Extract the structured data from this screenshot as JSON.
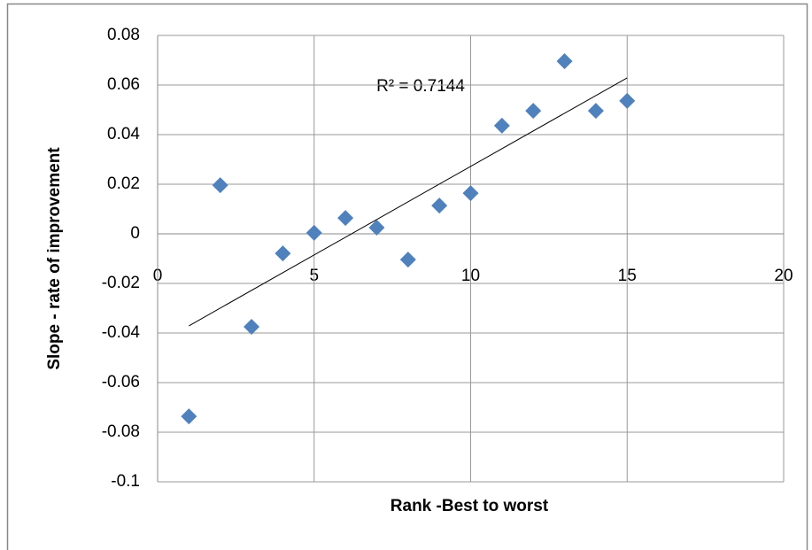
{
  "chart_data": {
    "type": "scatter",
    "x_label": "Rank -Best to worst",
    "y_label": "Slope - rate of improvement",
    "annotation": "R² = 0.7144",
    "color": "#4f81bd",
    "x": [
      1,
      2,
      3,
      4,
      5,
      6,
      7,
      8,
      9,
      10,
      11,
      12,
      13,
      14,
      15
    ],
    "values": [
      -0.0736,
      0.0196,
      -0.0375,
      -0.0079,
      0.0004,
      0.0064,
      0.0025,
      -0.0104,
      0.0114,
      0.0164,
      0.0436,
      0.0496,
      0.0696,
      0.0496,
      0.0536
    ],
    "trendline": {
      "x": [
        1,
        15
      ],
      "values": [
        -0.0371,
        0.0629
      ]
    },
    "xlim": [
      0,
      20
    ],
    "xticks": [
      0,
      5,
      10,
      15,
      20
    ],
    "ylim": [
      -0.1,
      0.08
    ],
    "yticks": [
      0.08,
      0.06,
      0.04,
      0.02,
      0,
      -0.02,
      -0.04,
      -0.06,
      -0.08,
      -0.1
    ],
    "grid": true
  }
}
